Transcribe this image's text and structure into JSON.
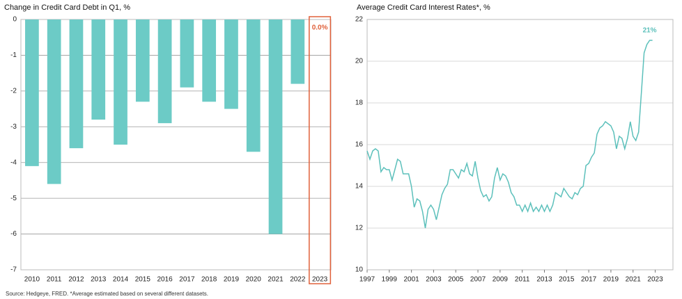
{
  "chart_data": [
    {
      "type": "bar",
      "title": "Change in Credit Card Debt in Q1, %",
      "categories": [
        "2010",
        "2011",
        "2012",
        "2013",
        "2014",
        "2015",
        "2016",
        "2017",
        "2018",
        "2019",
        "2020",
        "2021",
        "2022",
        "2023"
      ],
      "values": [
        -4.1,
        -4.6,
        -3.6,
        -2.8,
        -3.5,
        -2.3,
        -2.9,
        -1.9,
        -2.3,
        -2.5,
        -3.7,
        -6.0,
        -1.8,
        0.0
      ],
      "value_labels": [
        null,
        null,
        null,
        null,
        null,
        null,
        null,
        null,
        null,
        null,
        null,
        null,
        null,
        "0.0%"
      ],
      "color": "#6ccbc6",
      "highlight_color": "#e0603a",
      "ylim": [
        -7,
        0
      ],
      "yticks": [
        0,
        -1,
        -2,
        -3,
        -4,
        -5,
        -6,
        -7
      ],
      "grid": true
    },
    {
      "type": "line",
      "title": "Average Credit Card Interest Rates*, %",
      "x": [
        1997,
        1997.25,
        1997.5,
        1997.75,
        1998,
        1998.25,
        1998.5,
        1998.75,
        1999,
        1999.25,
        1999.5,
        1999.75,
        2000,
        2000.25,
        2000.5,
        2000.75,
        2001,
        2001.25,
        2001.5,
        2001.75,
        2002,
        2002.25,
        2002.5,
        2002.75,
        2003,
        2003.25,
        2003.5,
        2003.75,
        2004,
        2004.25,
        2004.5,
        2004.75,
        2005,
        2005.25,
        2005.5,
        2005.75,
        2006,
        2006.25,
        2006.5,
        2006.75,
        2007,
        2007.25,
        2007.5,
        2007.75,
        2008,
        2008.25,
        2008.5,
        2008.75,
        2009,
        2009.25,
        2009.5,
        2009.75,
        2010,
        2010.25,
        2010.5,
        2010.75,
        2011,
        2011.25,
        2011.5,
        2011.75,
        2012,
        2012.25,
        2012.5,
        2012.75,
        2013,
        2013.25,
        2013.5,
        2013.75,
        2014,
        2014.25,
        2014.5,
        2014.75,
        2015,
        2015.25,
        2015.5,
        2015.75,
        2016,
        2016.25,
        2016.5,
        2016.75,
        2017,
        2017.25,
        2017.5,
        2017.75,
        2018,
        2018.25,
        2018.5,
        2018.75,
        2019,
        2019.25,
        2019.5,
        2019.75,
        2020,
        2020.25,
        2020.5,
        2020.75,
        2021,
        2021.25,
        2021.5,
        2021.75,
        2022,
        2022.25,
        2022.5,
        2022.75
      ],
      "values": [
        15.7,
        15.3,
        15.7,
        15.8,
        15.7,
        14.7,
        14.9,
        14.8,
        14.8,
        14.3,
        14.8,
        15.3,
        15.2,
        14.6,
        14.6,
        14.6,
        14.0,
        13.0,
        13.4,
        13.3,
        12.8,
        12.0,
        12.9,
        13.1,
        12.9,
        12.4,
        13.0,
        13.6,
        13.9,
        14.1,
        14.8,
        14.8,
        14.6,
        14.4,
        14.8,
        14.7,
        15.1,
        14.6,
        14.5,
        15.2,
        14.4,
        13.8,
        13.5,
        13.6,
        13.3,
        13.5,
        14.4,
        14.9,
        14.3,
        14.6,
        14.5,
        14.2,
        13.7,
        13.5,
        13.1,
        13.1,
        12.8,
        13.1,
        12.8,
        13.2,
        12.8,
        13.0,
        12.8,
        13.1,
        12.8,
        13.1,
        12.8,
        13.1,
        13.7,
        13.6,
        13.5,
        13.9,
        13.7,
        13.5,
        13.4,
        13.7,
        13.6,
        13.9,
        14.0,
        15.0,
        15.1,
        15.4,
        15.6,
        16.5,
        16.8,
        16.9,
        17.1,
        17.0,
        16.9,
        16.6,
        15.8,
        16.4,
        16.3,
        15.8,
        16.3,
        17.1,
        16.4,
        16.2,
        16.6,
        18.5,
        20.4,
        20.8,
        21.0,
        21.0
      ],
      "end_label": "21%",
      "color": "#5cc0bb",
      "xlim": [
        1997,
        2024.6
      ],
      "xticks": [
        1997,
        1999,
        2001,
        2003,
        2005,
        2007,
        2009,
        2011,
        2013,
        2015,
        2017,
        2019,
        2021,
        2023
      ],
      "ylim": [
        10,
        22
      ],
      "yticks": [
        10,
        12,
        14,
        16,
        18,
        20,
        22
      ],
      "grid": true
    }
  ],
  "source": "Source: Hedgeye, FRED. *Average estimated based on several different datasets."
}
